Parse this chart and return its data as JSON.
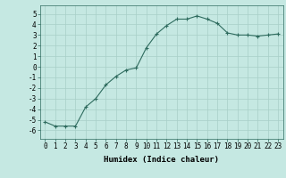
{
  "x": [
    0,
    1,
    2,
    3,
    4,
    5,
    6,
    7,
    8,
    9,
    10,
    11,
    12,
    13,
    14,
    15,
    16,
    17,
    18,
    19,
    20,
    21,
    22,
    23
  ],
  "y": [
    -5.2,
    -5.6,
    -5.6,
    -5.6,
    -3.8,
    -3.0,
    -1.7,
    -0.9,
    -0.3,
    -0.1,
    1.8,
    3.1,
    3.9,
    4.5,
    4.5,
    4.8,
    4.5,
    4.1,
    3.2,
    3.0,
    3.0,
    2.9,
    3.0,
    3.1
  ],
  "line_color": "#2e6b5e",
  "marker": "+",
  "marker_size": 3,
  "background_color": "#c5e8e2",
  "grid_color": "#a8cfc8",
  "ylabel_ticks": [
    5,
    4,
    3,
    2,
    1,
    0,
    -1,
    -2,
    -3,
    -4,
    -5,
    -6
  ],
  "xlim": [
    -0.5,
    23.5
  ],
  "ylim": [
    -6.8,
    5.8
  ],
  "xlabel": "Humidex (Indice chaleur)",
  "xlabel_fontsize": 6.5,
  "tick_fontsize": 5.5,
  "linewidth": 0.8
}
